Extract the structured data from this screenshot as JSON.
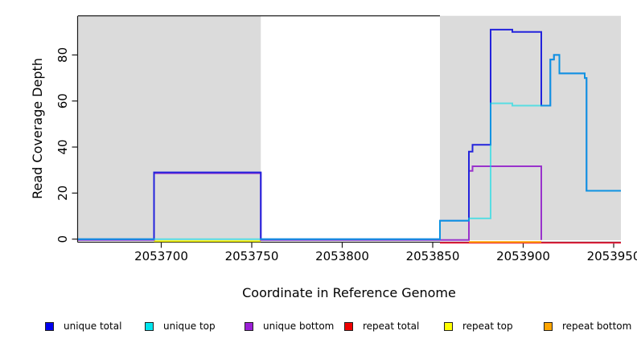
{
  "chart_data": {
    "type": "line",
    "subtype": "step-coverage",
    "title": "",
    "xlabel": "Coordinate in Reference Genome",
    "ylabel": "Read Coverage Depth",
    "xlim": [
      2053654,
      2053954
    ],
    "ylim": [
      0,
      97
    ],
    "x_ticks": [
      2053700,
      2053750,
      2053800,
      2053850,
      2053900,
      2053950
    ],
    "y_ticks": [
      0,
      20,
      40,
      60,
      80
    ],
    "grid": false,
    "plot_bg": "#FFFFFF",
    "shade_color": "#DBDBDB",
    "shaded_regions": [
      {
        "x0": 2053654,
        "x1": 2053755
      },
      {
        "x0": 2053854,
        "x1": 2053954
      }
    ],
    "series": [
      {
        "name": "repeat top",
        "color": "#F0F000",
        "opacity": 1,
        "points": [
          [
            2053696,
            0
          ]
        ],
        "x_end": 2053755
      },
      {
        "name": "repeat total",
        "color": "#E8203C",
        "opacity": 1,
        "points": [
          [
            2053854,
            0
          ]
        ],
        "x_end": 2053954
      },
      {
        "name": "repeat bottom",
        "color": "#FFA000",
        "opacity": 1,
        "points": [
          [
            2053870,
            0
          ]
        ],
        "x_end": 2053910
      },
      {
        "name": "unique bottom",
        "color": "#9932CC",
        "opacity": 1,
        "points": [
          [
            2053654,
            0
          ],
          [
            2053696,
            29
          ],
          [
            2053755,
            0
          ],
          [
            2053870,
            30
          ],
          [
            2053872,
            32
          ],
          [
            2053910,
            0
          ]
        ],
        "x_end": 2053910
      },
      {
        "name": "unique total",
        "color": "#2323DC",
        "opacity": 1,
        "points": [
          [
            2053654,
            0
          ],
          [
            2053696,
            29
          ],
          [
            2053755,
            0
          ],
          [
            2053854,
            8
          ],
          [
            2053870,
            38
          ],
          [
            2053872,
            41
          ],
          [
            2053882,
            91
          ],
          [
            2053894,
            90
          ],
          [
            2053910,
            58
          ],
          [
            2053915,
            78
          ],
          [
            2053917,
            80
          ],
          [
            2053920,
            72
          ],
          [
            2053934,
            70
          ],
          [
            2053935,
            21
          ]
        ],
        "x_end": 2053954
      },
      {
        "name": "unique top",
        "color": "#00DDE6",
        "opacity": 0.6,
        "points": [
          [
            2053654,
            0
          ],
          [
            2053854,
            8
          ],
          [
            2053870,
            9
          ],
          [
            2053882,
            59
          ],
          [
            2053894,
            58
          ],
          [
            2053910,
            58
          ],
          [
            2053915,
            78
          ],
          [
            2053917,
            80
          ],
          [
            2053920,
            72
          ],
          [
            2053934,
            70
          ],
          [
            2053935,
            21
          ]
        ],
        "x_end": 2053954
      }
    ],
    "legend": [
      {
        "label": "unique total",
        "color": "#0000EE"
      },
      {
        "label": "unique top",
        "color": "#00E5EE"
      },
      {
        "label": "unique bottom",
        "color": "#9B1FD6"
      },
      {
        "label": "repeat total",
        "color": "#EE0000"
      },
      {
        "label": "repeat top",
        "color": "#FFFF00"
      },
      {
        "label": "repeat bottom",
        "color": "#FFA500"
      }
    ],
    "legend_position": "bottom"
  }
}
